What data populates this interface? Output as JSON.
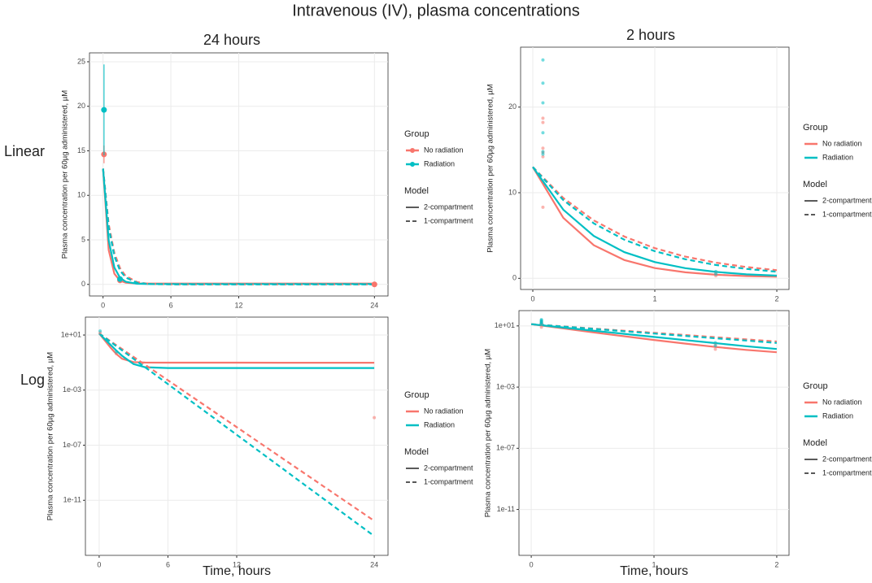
{
  "figure": {
    "title": "Intravenous (IV), plasma concentrations",
    "column_titles": [
      "24 hours",
      "2 hours"
    ],
    "row_labels": [
      "Linear",
      "Log"
    ]
  },
  "chart_data": [
    {
      "type": "line",
      "log": false,
      "grid": true,
      "ylabel": "Plasma concentration per 60µg administered, µM",
      "xlim": [
        -1.2,
        25.2
      ],
      "xticks": [
        0,
        6,
        12,
        24
      ],
      "ylim": [
        -1.3,
        26
      ],
      "yticks": [
        0,
        5,
        10,
        15,
        20,
        25
      ],
      "legend": {
        "group_title": "Group",
        "groups": [
          "No radiation",
          "Radiation"
        ],
        "group_colors": [
          "#f8766d",
          "#00bfc4"
        ],
        "model_title": "Model",
        "models": [
          "2-compartment",
          "1-compartment"
        ],
        "model_dashes": [
          "solid",
          "dashed"
        ]
      },
      "x": [
        0,
        0.5,
        1,
        1.5,
        2,
        3,
        4,
        6,
        8,
        12,
        16,
        20,
        24
      ],
      "series": [
        {
          "group": "No radiation",
          "model": "2-compartment",
          "values": [
            13,
            3.87,
            1.2,
            0.42,
            0.19,
            0.108,
            0.1,
            0.099,
            0.099,
            0.099,
            0.098,
            0.098,
            0.098
          ]
        },
        {
          "group": "Radiation",
          "model": "2-compartment",
          "values": [
            13,
            4.95,
            1.9,
            0.75,
            0.31,
            0.078,
            0.046,
            0.04,
            0.04,
            0.04,
            0.04,
            0.04,
            0.04
          ]
        },
        {
          "group": "No radiation",
          "model": "1-compartment",
          "values": [
            13,
            6.76,
            3.52,
            1.83,
            0.95,
            0.259,
            0.0701,
            0.00515,
            0.000379,
            2.04e-06,
            1.1e-08,
            5.9e-11,
            3.2e-13
          ]
        },
        {
          "group": "Radiation",
          "model": "1-compartment",
          "values": [
            13,
            6.42,
            3.17,
            1.56,
            0.77,
            0.188,
            0.0459,
            0.00273,
            0.000162,
            5.7e-07,
            2e-09,
            7.1e-12,
            2.5e-14
          ]
        }
      ],
      "points": [
        {
          "group": "No radiation",
          "x": [
            0.083,
            1.5,
            24
          ],
          "values": [
            14.6,
            0.45,
            1e-05
          ],
          "errors": [
            1.0,
            0.1,
            0
          ]
        },
        {
          "group": "Radiation",
          "x": [
            0.083,
            1.5
          ],
          "values": [
            19.6,
            0.6
          ],
          "errors": [
            5.1,
            0.2
          ]
        }
      ]
    },
    {
      "type": "line",
      "log": false,
      "grid": true,
      "ylabel": "Plasma concentration per 60µg administered, µM",
      "xlim": [
        -0.1,
        2.1
      ],
      "xticks": [
        0,
        1,
        2
      ],
      "ylim": [
        -1.3,
        27
      ],
      "yticks": [
        0,
        10,
        20
      ],
      "legend": {
        "group_title": "Group",
        "groups": [
          "No radiation",
          "Radiation"
        ],
        "group_colors": [
          "#f8766d",
          "#00bfc4"
        ],
        "model_title": "Model",
        "models": [
          "2-compartment",
          "1-compartment"
        ],
        "model_dashes": [
          "solid",
          "dashed"
        ]
      },
      "x": [
        0,
        0.25,
        0.5,
        0.75,
        1,
        1.25,
        1.5,
        1.75,
        2
      ],
      "series": [
        {
          "group": "No radiation",
          "model": "2-compartment",
          "values": [
            13,
            7.07,
            3.87,
            2.14,
            1.2,
            0.7,
            0.42,
            0.27,
            0.19
          ]
        },
        {
          "group": "Radiation",
          "model": "2-compartment",
          "values": [
            13,
            8.02,
            4.95,
            3.06,
            1.9,
            1.19,
            0.75,
            0.47,
            0.31
          ]
        },
        {
          "group": "No radiation",
          "model": "1-compartment",
          "values": [
            13,
            9.38,
            6.76,
            4.88,
            3.52,
            2.54,
            1.83,
            1.32,
            0.95
          ]
        },
        {
          "group": "Radiation",
          "model": "1-compartment",
          "values": [
            13,
            9.14,
            6.42,
            4.51,
            3.17,
            2.23,
            1.56,
            1.1,
            0.77
          ]
        }
      ],
      "points": [
        {
          "group": "No radiation",
          "x": [
            0.083,
            0.083,
            0.083,
            0.083,
            0.083,
            0.083,
            1.5,
            1.5
          ],
          "values": [
            18.7,
            18.2,
            15.2,
            14.7,
            14.2,
            8.3,
            0.3,
            0.6
          ]
        },
        {
          "group": "Radiation",
          "x": [
            0.083,
            0.083,
            0.083,
            0.083,
            0.083,
            0.083,
            1.5,
            1.5
          ],
          "values": [
            25.5,
            22.8,
            20.5,
            17,
            14.5,
            14.8,
            0.5,
            0.8
          ]
        }
      ]
    },
    {
      "type": "line",
      "log": true,
      "grid": true,
      "ylabel": "Plasma concentration per 60µg administered, µM",
      "xlabel": "Time, hours",
      "xlim": [
        -1.2,
        25.2
      ],
      "xticks": [
        0,
        6,
        12,
        24
      ],
      "ylim": [
        1e-15,
        200
      ],
      "yticks": [
        {
          "value": 10,
          "label": "1e+01"
        },
        {
          "value": 0.001,
          "label": "1e-03"
        },
        {
          "value": 1e-07,
          "label": "1e-07"
        },
        {
          "value": 1e-11,
          "label": "1e-11"
        }
      ],
      "legend": {
        "group_title": "Group",
        "groups": [
          "No radiation",
          "Radiation"
        ],
        "group_colors": [
          "#f8766d",
          "#00bfc4"
        ],
        "model_title": "Model",
        "models": [
          "2-compartment",
          "1-compartment"
        ],
        "model_dashes": [
          "solid",
          "dashed"
        ]
      },
      "x": [
        0,
        0.5,
        1,
        1.5,
        2,
        3,
        4,
        6,
        8,
        12,
        16,
        20,
        24
      ],
      "series": [
        {
          "group": "No radiation",
          "model": "2-compartment",
          "values": [
            13,
            3.87,
            1.2,
            0.42,
            0.19,
            0.108,
            0.1,
            0.099,
            0.099,
            0.099,
            0.098,
            0.098,
            0.098
          ]
        },
        {
          "group": "Radiation",
          "model": "2-compartment",
          "values": [
            13,
            4.95,
            1.9,
            0.75,
            0.31,
            0.078,
            0.046,
            0.04,
            0.04,
            0.04,
            0.04,
            0.04,
            0.04
          ]
        },
        {
          "group": "No radiation",
          "model": "1-compartment",
          "values": [
            13,
            6.76,
            3.52,
            1.83,
            0.95,
            0.259,
            0.0701,
            0.00515,
            0.000379,
            2.04e-06,
            1.1e-08,
            5.9e-11,
            3.2e-13
          ]
        },
        {
          "group": "Radiation",
          "model": "1-compartment",
          "values": [
            13,
            6.42,
            3.17,
            1.56,
            0.77,
            0.188,
            0.0459,
            0.00273,
            0.000162,
            5.7e-07,
            2e-09,
            7.1e-12,
            2.5e-14
          ]
        }
      ],
      "points": [
        {
          "group": "No radiation",
          "x": [
            0.083,
            1.5,
            24
          ],
          "values": [
            14.6,
            0.45,
            1e-05
          ]
        },
        {
          "group": "Radiation",
          "x": [
            0.083,
            1.5
          ],
          "values": [
            19.6,
            0.6
          ]
        }
      ]
    },
    {
      "type": "line",
      "log": true,
      "grid": true,
      "ylabel": "Plasma concentration per 60µg administered, µM",
      "xlabel": "Time, hours",
      "xlim": [
        -0.1,
        2.1
      ],
      "xticks": [
        0,
        1,
        2
      ],
      "ylim": [
        1e-14,
        100
      ],
      "yticks": [
        {
          "value": 10,
          "label": "1e+01"
        },
        {
          "value": 0.001,
          "label": "1e-03"
        },
        {
          "value": 1e-07,
          "label": "1e-07"
        },
        {
          "value": 1e-11,
          "label": "1e-11"
        }
      ],
      "legend": {
        "group_title": "Group",
        "groups": [
          "No radiation",
          "Radiation"
        ],
        "group_colors": [
          "#f8766d",
          "#00bfc4"
        ],
        "model_title": "Model",
        "models": [
          "2-compartment",
          "1-compartment"
        ],
        "model_dashes": [
          "solid",
          "dashed"
        ]
      },
      "x": [
        0,
        0.25,
        0.5,
        0.75,
        1,
        1.25,
        1.5,
        1.75,
        2
      ],
      "series": [
        {
          "group": "No radiation",
          "model": "2-compartment",
          "values": [
            13,
            7.07,
            3.87,
            2.14,
            1.2,
            0.7,
            0.42,
            0.27,
            0.19
          ]
        },
        {
          "group": "Radiation",
          "model": "2-compartment",
          "values": [
            13,
            8.02,
            4.95,
            3.06,
            1.9,
            1.19,
            0.75,
            0.47,
            0.31
          ]
        },
        {
          "group": "No radiation",
          "model": "1-compartment",
          "values": [
            13,
            9.38,
            6.76,
            4.88,
            3.52,
            2.54,
            1.83,
            1.32,
            0.95
          ]
        },
        {
          "group": "Radiation",
          "model": "1-compartment",
          "values": [
            13,
            9.14,
            6.42,
            4.51,
            3.17,
            2.23,
            1.56,
            1.1,
            0.77
          ]
        }
      ],
      "points": [
        {
          "group": "No radiation",
          "x": [
            0.083,
            0.083,
            0.083,
            0.083,
            0.083,
            0.083,
            1.5,
            1.5
          ],
          "values": [
            18.7,
            18.2,
            15.2,
            14.7,
            14.2,
            8.3,
            0.3,
            0.6
          ]
        },
        {
          "group": "Radiation",
          "x": [
            0.083,
            0.083,
            0.083,
            0.083,
            0.083,
            0.083,
            1.5,
            1.5
          ],
          "values": [
            25.5,
            22.8,
            20.5,
            17,
            14.5,
            14.8,
            0.5,
            0.8
          ]
        }
      ]
    }
  ]
}
